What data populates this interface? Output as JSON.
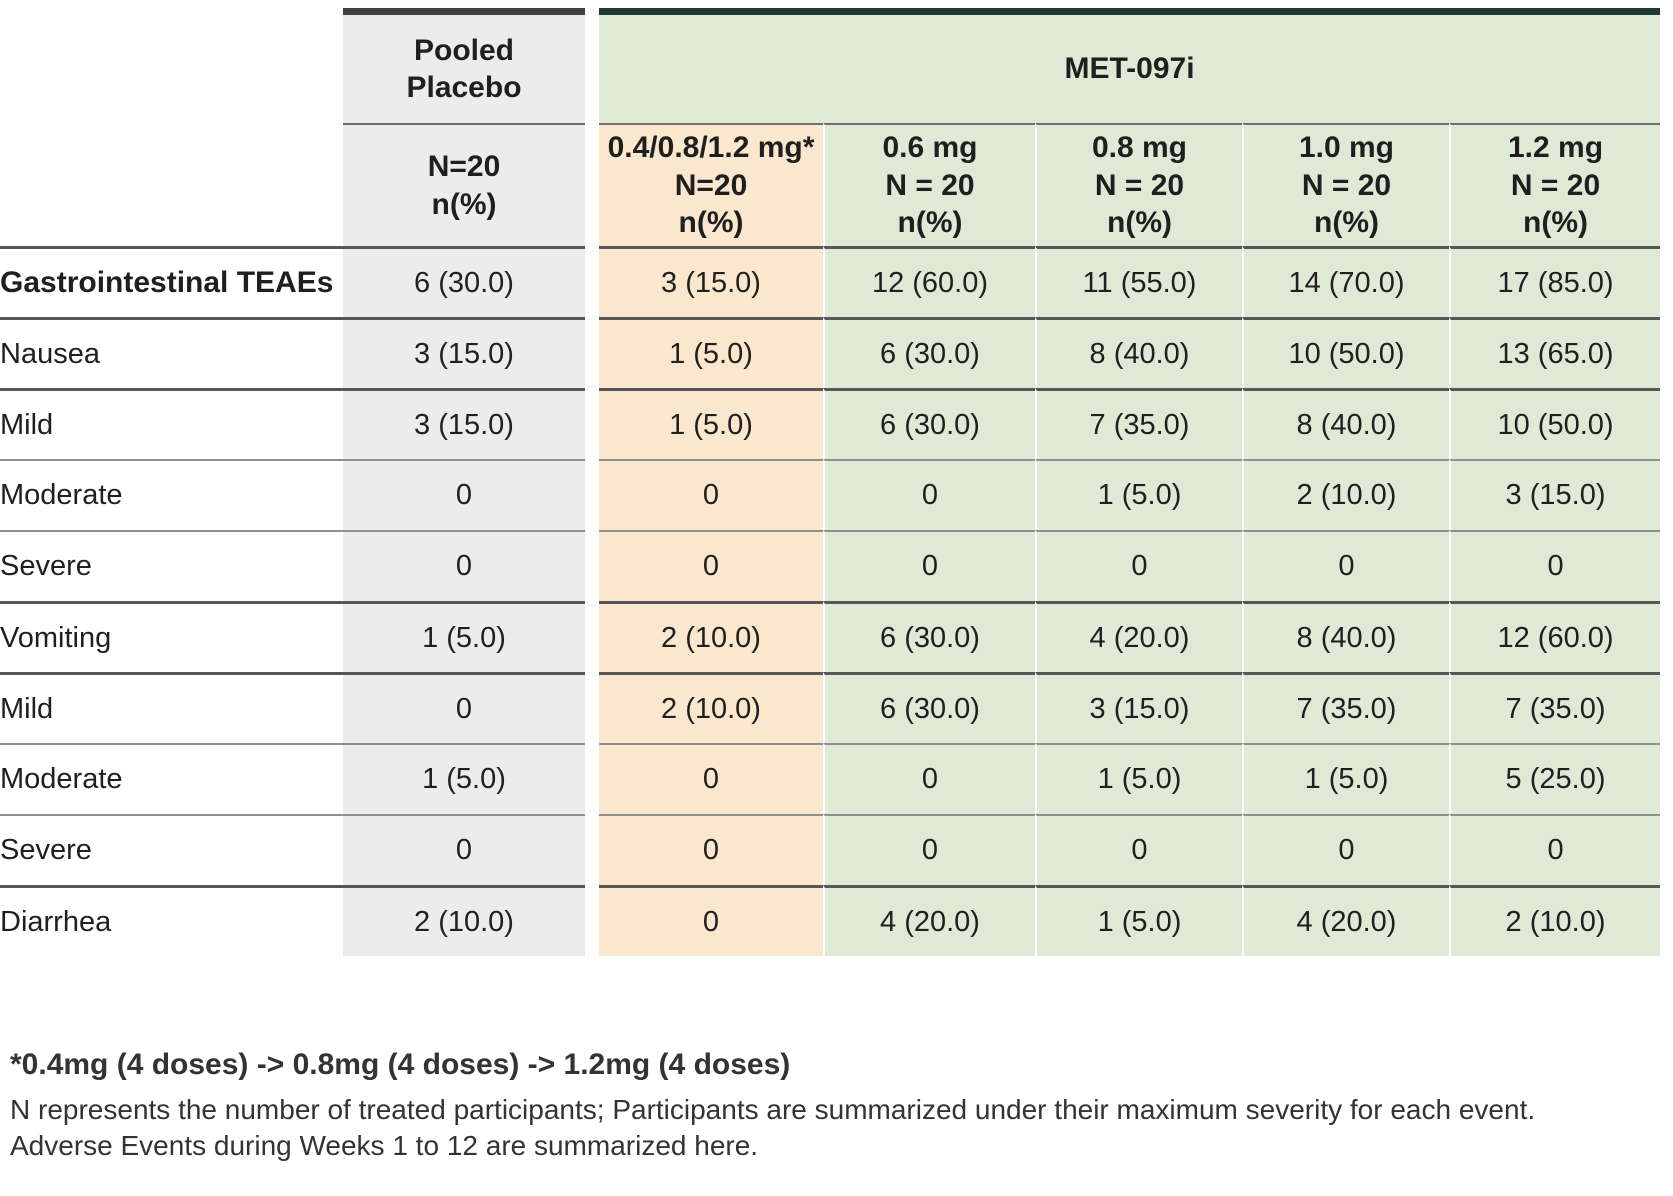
{
  "colors": {
    "placebo_bg": "#ececec",
    "titration_bg": "#fae7cd",
    "treatment_bg": "#dfead6",
    "placebo_top_bar": "#414141",
    "treatment_top_bar": "#1d3a31",
    "header_sep": "#6f6f6f",
    "sep_thick": "#575757",
    "sep_thin": "#8f8f8f",
    "text": "#1f1f1f",
    "footnote_text": "#333333"
  },
  "header": {
    "placebo_title_lines": [
      "Pooled",
      "Placebo"
    ],
    "placebo_sub_lines": [
      "N=20",
      "n(%)"
    ],
    "treatment_title": "MET-097i",
    "dose_columns": [
      {
        "variant": "titration",
        "lines": [
          "0.4/0.8/1.2 mg*",
          "N=20",
          "n(%)"
        ]
      },
      {
        "variant": "dose",
        "lines": [
          "0.6 mg",
          "N = 20",
          "n(%)"
        ]
      },
      {
        "variant": "dose",
        "lines": [
          "0.8 mg",
          "N = 20",
          "n(%)"
        ]
      },
      {
        "variant": "dose",
        "lines": [
          "1.0 mg",
          "N = 20",
          "n(%)"
        ]
      },
      {
        "variant": "dose",
        "lines": [
          "1.2 mg",
          "N = 20",
          "n(%)"
        ]
      }
    ]
  },
  "chart_data": {
    "type": "table",
    "title": "",
    "column_groups": [
      {
        "label": "Pooled Placebo",
        "span": 1
      },
      {
        "label": "MET-097i",
        "span": 5
      }
    ],
    "columns": [
      "Pooled Placebo N=20 n(%)",
      "0.4/0.8/1.2 mg* N=20 n(%)",
      "0.6 mg N = 20 n(%)",
      "0.8 mg N = 20 n(%)",
      "1.0 mg N = 20 n(%)",
      "1.2 mg N = 20 n(%)"
    ],
    "rows": [
      {
        "label": "Gastrointestinal TEAEs",
        "indent": 0,
        "bold": true,
        "sep": "thick",
        "values": [
          "6 (30.0)",
          "3 (15.0)",
          "12 (60.0)",
          "11 (55.0)",
          "14 (70.0)",
          "17 (85.0)"
        ]
      },
      {
        "label": "Nausea",
        "indent": 1,
        "bold": false,
        "sep": "thick",
        "values": [
          "3 (15.0)",
          "1 (5.0)",
          "6 (30.0)",
          "8 (40.0)",
          "10 (50.0)",
          "13 (65.0)"
        ]
      },
      {
        "label": "Mild",
        "indent": 2,
        "bold": false,
        "sep": "thick",
        "values": [
          "3 (15.0)",
          "1 (5.0)",
          "6 (30.0)",
          "7 (35.0)",
          "8 (40.0)",
          "10 (50.0)"
        ]
      },
      {
        "label": "Moderate",
        "indent": 2,
        "bold": false,
        "sep": "thin",
        "values": [
          "0",
          "0",
          "0",
          "1 (5.0)",
          "2 (10.0)",
          "3 (15.0)"
        ]
      },
      {
        "label": "Severe",
        "indent": 2,
        "bold": false,
        "sep": "thin",
        "values": [
          "0",
          "0",
          "0",
          "0",
          "0",
          "0"
        ]
      },
      {
        "label": "Vomiting",
        "indent": 1,
        "bold": false,
        "sep": "thick",
        "values": [
          "1 (5.0)",
          "2 (10.0)",
          "6 (30.0)",
          "4 (20.0)",
          "8 (40.0)",
          "12 (60.0)"
        ]
      },
      {
        "label": "Mild",
        "indent": 2,
        "bold": false,
        "sep": "thick",
        "values": [
          "0",
          "2 (10.0)",
          "6 (30.0)",
          "3 (15.0)",
          "7 (35.0)",
          "7 (35.0)"
        ]
      },
      {
        "label": "Moderate",
        "indent": 2,
        "bold": false,
        "sep": "thin",
        "values": [
          "1 (5.0)",
          "0",
          "0",
          "1 (5.0)",
          "1 (5.0)",
          "5 (25.0)"
        ]
      },
      {
        "label": "Severe",
        "indent": 2,
        "bold": false,
        "sep": "thin",
        "values": [
          "0",
          "0",
          "0",
          "0",
          "0",
          "0"
        ]
      },
      {
        "label": "Diarrhea",
        "indent": 1,
        "bold": false,
        "sep": "thick",
        "values": [
          "2 (10.0)",
          "0",
          "4 (20.0)",
          "1 (5.0)",
          "4 (20.0)",
          "2 (10.0)"
        ]
      }
    ],
    "footnotes": [
      "*0.4mg (4 doses) -> 0.8mg (4 doses) -> 1.2mg (4 doses)",
      "N represents the number of treated participants; Participants are summarized under their maximum severity for each event. Adverse Events during Weeks 1 to 12 are summarized here."
    ]
  }
}
